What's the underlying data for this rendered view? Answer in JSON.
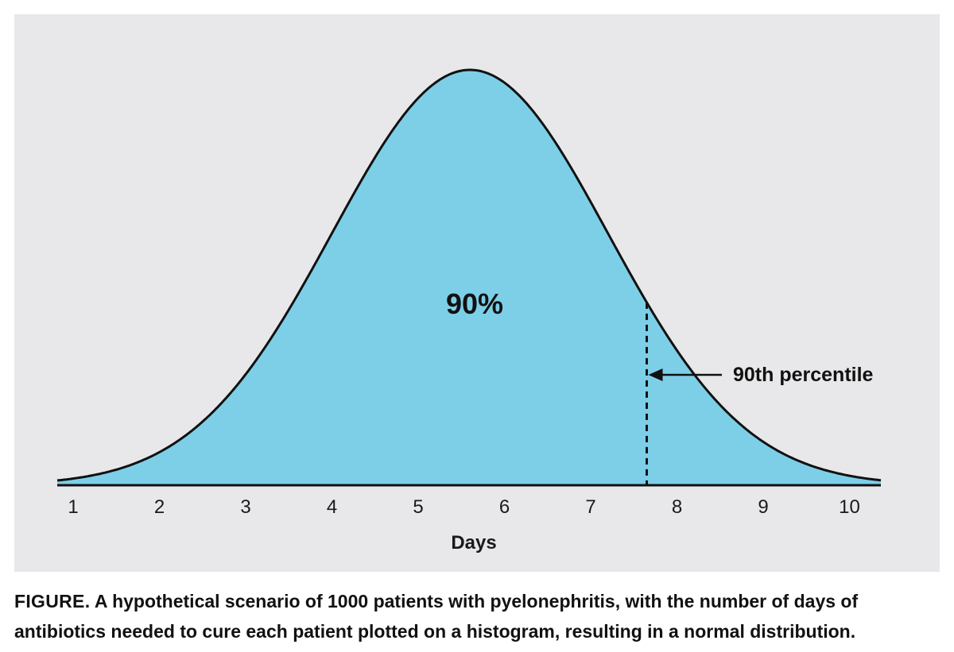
{
  "chart_data": {
    "type": "area",
    "distribution": "normal",
    "xlabel": "Days",
    "ylabel": "",
    "x_ticks": [
      1,
      2,
      3,
      4,
      5,
      6,
      7,
      8,
      9,
      10
    ],
    "xlim": [
      0.9,
      10.3
    ],
    "mean": 5.6,
    "sd": 1.6,
    "percentile_value": 7.65,
    "center_label": "90%",
    "annotation": "90th percentile",
    "grid": false,
    "legend": "none"
  },
  "colors": {
    "background": "#e8e8ea",
    "fill": "#7dcfe8",
    "outline": "#111111"
  },
  "caption": {
    "label": "FIGURE.",
    "text": " A hypothetical scenario of 1000 patients with pyelonephritis, with the number of days of antibiotics needed to cure each patient plotted on a histogram, resulting in a normal distribution."
  }
}
